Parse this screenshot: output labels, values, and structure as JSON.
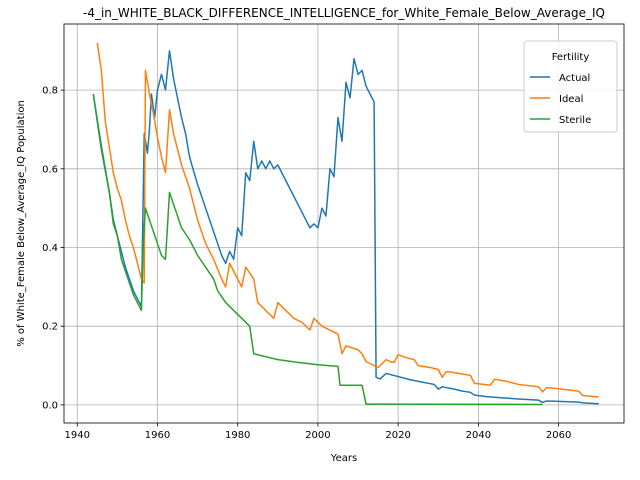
{
  "chart_data": {
    "type": "line",
    "title": "-4_in_WHITE_BLACK_DIFFERENCE_INTELLIGENCE_for_White_Female_Below_Average_IQ",
    "xlabel": "Years",
    "ylabel": "% of White_Female Below_Average_IQ Population",
    "xlim": [
      1936.7,
      2076.3
    ],
    "ylim": [
      -0.046,
      0.968
    ],
    "xticks": [
      1940,
      1960,
      1980,
      2000,
      2020,
      2040,
      2060
    ],
    "yticks": [
      0.0,
      0.2,
      0.4,
      0.6,
      0.8
    ],
    "ytick_labels": [
      "0.0",
      "0.2",
      "0.4",
      "0.6",
      "0.8"
    ],
    "grid": true,
    "legend": {
      "title": "Fertility",
      "placement": "top-right"
    },
    "series": [
      {
        "name": "Actual",
        "color": "#1f77b4",
        "points": [
          [
            1944,
            0.79
          ],
          [
            1946,
            0.65
          ],
          [
            1948,
            0.54
          ],
          [
            1949,
            0.47
          ],
          [
            1950,
            0.43
          ],
          [
            1951,
            0.39
          ],
          [
            1952,
            0.35
          ],
          [
            1953,
            0.32
          ],
          [
            1954,
            0.29
          ],
          [
            1955,
            0.27
          ],
          [
            1956,
            0.25
          ],
          [
            1956.7,
            0.69
          ],
          [
            1957.5,
            0.64
          ],
          [
            1958,
            0.7
          ],
          [
            1958.5,
            0.79
          ],
          [
            1959.3,
            0.73
          ],
          [
            1960,
            0.8
          ],
          [
            1961,
            0.84
          ],
          [
            1962,
            0.8
          ],
          [
            1963,
            0.9
          ],
          [
            1964,
            0.83
          ],
          [
            1965,
            0.78
          ],
          [
            1966,
            0.73
          ],
          [
            1967,
            0.69
          ],
          [
            1968,
            0.63
          ],
          [
            1970,
            0.56
          ],
          [
            1972,
            0.5
          ],
          [
            1974,
            0.44
          ],
          [
            1975,
            0.41
          ],
          [
            1976,
            0.38
          ],
          [
            1977,
            0.36
          ],
          [
            1978,
            0.39
          ],
          [
            1979,
            0.37
          ],
          [
            1980,
            0.45
          ],
          [
            1981,
            0.43
          ],
          [
            1982,
            0.59
          ],
          [
            1983,
            0.57
          ],
          [
            1984,
            0.67
          ],
          [
            1985,
            0.6
          ],
          [
            1986,
            0.62
          ],
          [
            1987,
            0.6
          ],
          [
            1988,
            0.62
          ],
          [
            1989,
            0.6
          ],
          [
            1990,
            0.61
          ],
          [
            1991,
            0.59
          ],
          [
            1992,
            0.57
          ],
          [
            1993,
            0.55
          ],
          [
            1994,
            0.53
          ],
          [
            1995,
            0.51
          ],
          [
            1996,
            0.49
          ],
          [
            1997,
            0.47
          ],
          [
            1998,
            0.45
          ],
          [
            1999,
            0.46
          ],
          [
            2000,
            0.45
          ],
          [
            2001,
            0.5
          ],
          [
            2002,
            0.48
          ],
          [
            2003,
            0.6
          ],
          [
            2004,
            0.58
          ],
          [
            2005,
            0.73
          ],
          [
            2006,
            0.67
          ],
          [
            2007,
            0.82
          ],
          [
            2008,
            0.78
          ],
          [
            2009,
            0.88
          ],
          [
            2010,
            0.84
          ],
          [
            2011,
            0.85
          ],
          [
            2012,
            0.81
          ],
          [
            2014,
            0.77
          ],
          [
            2014.5,
            0.07
          ],
          [
            2015.5,
            0.066
          ],
          [
            2017,
            0.08
          ],
          [
            2020,
            0.072
          ],
          [
            2023,
            0.064
          ],
          [
            2026,
            0.058
          ],
          [
            2029,
            0.052
          ],
          [
            2030,
            0.04
          ],
          [
            2031,
            0.046
          ],
          [
            2034,
            0.04
          ],
          [
            2036,
            0.035
          ],
          [
            2038,
            0.032
          ],
          [
            2039,
            0.025
          ],
          [
            2042,
            0.021
          ],
          [
            2046,
            0.018
          ],
          [
            2050,
            0.015
          ],
          [
            2055,
            0.012
          ],
          [
            2056,
            0.006
          ],
          [
            2057,
            0.01
          ],
          [
            2060,
            0.009
          ],
          [
            2065,
            0.007
          ],
          [
            2066,
            0.005
          ],
          [
            2070,
            0.003
          ]
        ]
      },
      {
        "name": "Ideal",
        "color": "#ff7f0e",
        "points": [
          [
            1945,
            0.92
          ],
          [
            1946,
            0.85
          ],
          [
            1947,
            0.72
          ],
          [
            1949,
            0.59
          ],
          [
            1950,
            0.55
          ],
          [
            1951,
            0.52
          ],
          [
            1952,
            0.47
          ],
          [
            1953,
            0.43
          ],
          [
            1954,
            0.4
          ],
          [
            1955,
            0.36
          ],
          [
            1956,
            0.32
          ],
          [
            1956.7,
            0.31
          ],
          [
            1957,
            0.85
          ],
          [
            1958,
            0.79
          ],
          [
            1959,
            0.74
          ],
          [
            1960,
            0.68
          ],
          [
            1961,
            0.63
          ],
          [
            1962,
            0.59
          ],
          [
            1963,
            0.75
          ],
          [
            1964,
            0.69
          ],
          [
            1965,
            0.65
          ],
          [
            1966,
            0.61
          ],
          [
            1968,
            0.55
          ],
          [
            1970,
            0.47
          ],
          [
            1972,
            0.41
          ],
          [
            1974,
            0.37
          ],
          [
            1976,
            0.32
          ],
          [
            1977,
            0.3
          ],
          [
            1978,
            0.36
          ],
          [
            1980,
            0.32
          ],
          [
            1981,
            0.3
          ],
          [
            1982,
            0.35
          ],
          [
            1984,
            0.32
          ],
          [
            1985,
            0.26
          ],
          [
            1988,
            0.23
          ],
          [
            1989,
            0.22
          ],
          [
            1990,
            0.26
          ],
          [
            1992,
            0.24
          ],
          [
            1994,
            0.22
          ],
          [
            1996,
            0.21
          ],
          [
            1998,
            0.19
          ],
          [
            1999,
            0.22
          ],
          [
            2001,
            0.2
          ],
          [
            2005,
            0.18
          ],
          [
            2006,
            0.13
          ],
          [
            2007,
            0.15
          ],
          [
            2010,
            0.14
          ],
          [
            2011,
            0.13
          ],
          [
            2012,
            0.11
          ],
          [
            2015,
            0.095
          ],
          [
            2017,
            0.115
          ],
          [
            2018,
            0.11
          ],
          [
            2019,
            0.108
          ],
          [
            2020,
            0.128
          ],
          [
            2022,
            0.12
          ],
          [
            2024,
            0.115
          ],
          [
            2025,
            0.1
          ],
          [
            2028,
            0.095
          ],
          [
            2030,
            0.09
          ],
          [
            2031,
            0.07
          ],
          [
            2032,
            0.085
          ],
          [
            2034,
            0.082
          ],
          [
            2038,
            0.075
          ],
          [
            2039,
            0.055
          ],
          [
            2043,
            0.05
          ],
          [
            2044,
            0.065
          ],
          [
            2047,
            0.06
          ],
          [
            2050,
            0.052
          ],
          [
            2055,
            0.046
          ],
          [
            2056,
            0.033
          ],
          [
            2057,
            0.044
          ],
          [
            2060,
            0.041
          ],
          [
            2065,
            0.035
          ],
          [
            2066,
            0.024
          ],
          [
            2070,
            0.02
          ]
        ]
      },
      {
        "name": "Sterile",
        "color": "#2ca02c",
        "points": [
          [
            1944,
            0.79
          ],
          [
            1946,
            0.66
          ],
          [
            1948,
            0.54
          ],
          [
            1949,
            0.46
          ],
          [
            1950,
            0.43
          ],
          [
            1951,
            0.37
          ],
          [
            1952,
            0.34
          ],
          [
            1953,
            0.31
          ],
          [
            1954,
            0.28
          ],
          [
            1955,
            0.26
          ],
          [
            1956,
            0.24
          ],
          [
            1956.5,
            0.42
          ],
          [
            1957,
            0.5
          ],
          [
            1958,
            0.47
          ],
          [
            1959,
            0.44
          ],
          [
            1960,
            0.41
          ],
          [
            1961,
            0.38
          ],
          [
            1962,
            0.37
          ],
          [
            1963,
            0.54
          ],
          [
            1964,
            0.51
          ],
          [
            1965,
            0.48
          ],
          [
            1966,
            0.45
          ],
          [
            1968,
            0.42
          ],
          [
            1970,
            0.38
          ],
          [
            1972,
            0.35
          ],
          [
            1974,
            0.32
          ],
          [
            1975,
            0.29
          ],
          [
            1977,
            0.26
          ],
          [
            1979,
            0.24
          ],
          [
            1981,
            0.22
          ],
          [
            1983,
            0.2
          ],
          [
            1984,
            0.13
          ],
          [
            1986,
            0.125
          ],
          [
            1988,
            0.12
          ],
          [
            1990,
            0.115
          ],
          [
            1995,
            0.108
          ],
          [
            2000,
            0.102
          ],
          [
            2005,
            0.098
          ],
          [
            2005.5,
            0.05
          ],
          [
            2011,
            0.05
          ],
          [
            2012,
            0.002
          ],
          [
            2056,
            0.001
          ]
        ]
      }
    ]
  }
}
